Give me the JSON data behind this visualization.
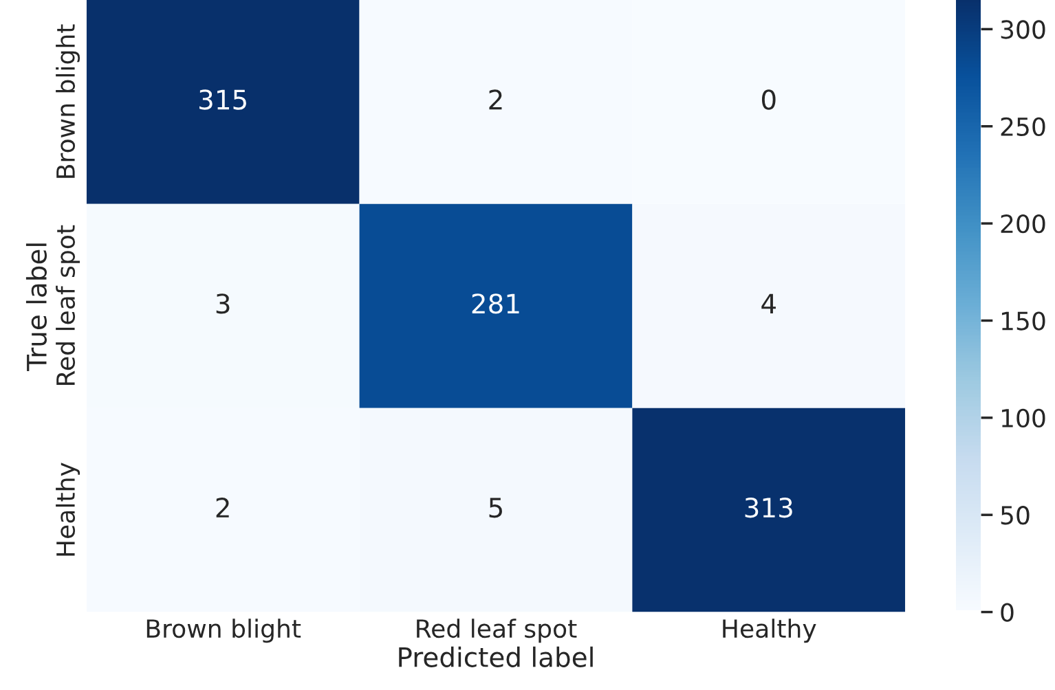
{
  "chart_data": {
    "type": "heatmap",
    "xlabel": "Predicted label",
    "ylabel": "True label",
    "categories": [
      "Brown blight",
      "Red leaf spot",
      "Healthy"
    ],
    "y_categories": [
      "Brown blight",
      "Red leaf spot",
      "Healthy"
    ],
    "cells": [
      [
        315,
        2,
        0
      ],
      [
        3,
        281,
        4
      ],
      [
        2,
        5,
        313
      ]
    ],
    "data_labels": true,
    "clim": [
      0,
      315
    ],
    "cticks": [
      0,
      50,
      100,
      150,
      200,
      250,
      300
    ]
  }
}
